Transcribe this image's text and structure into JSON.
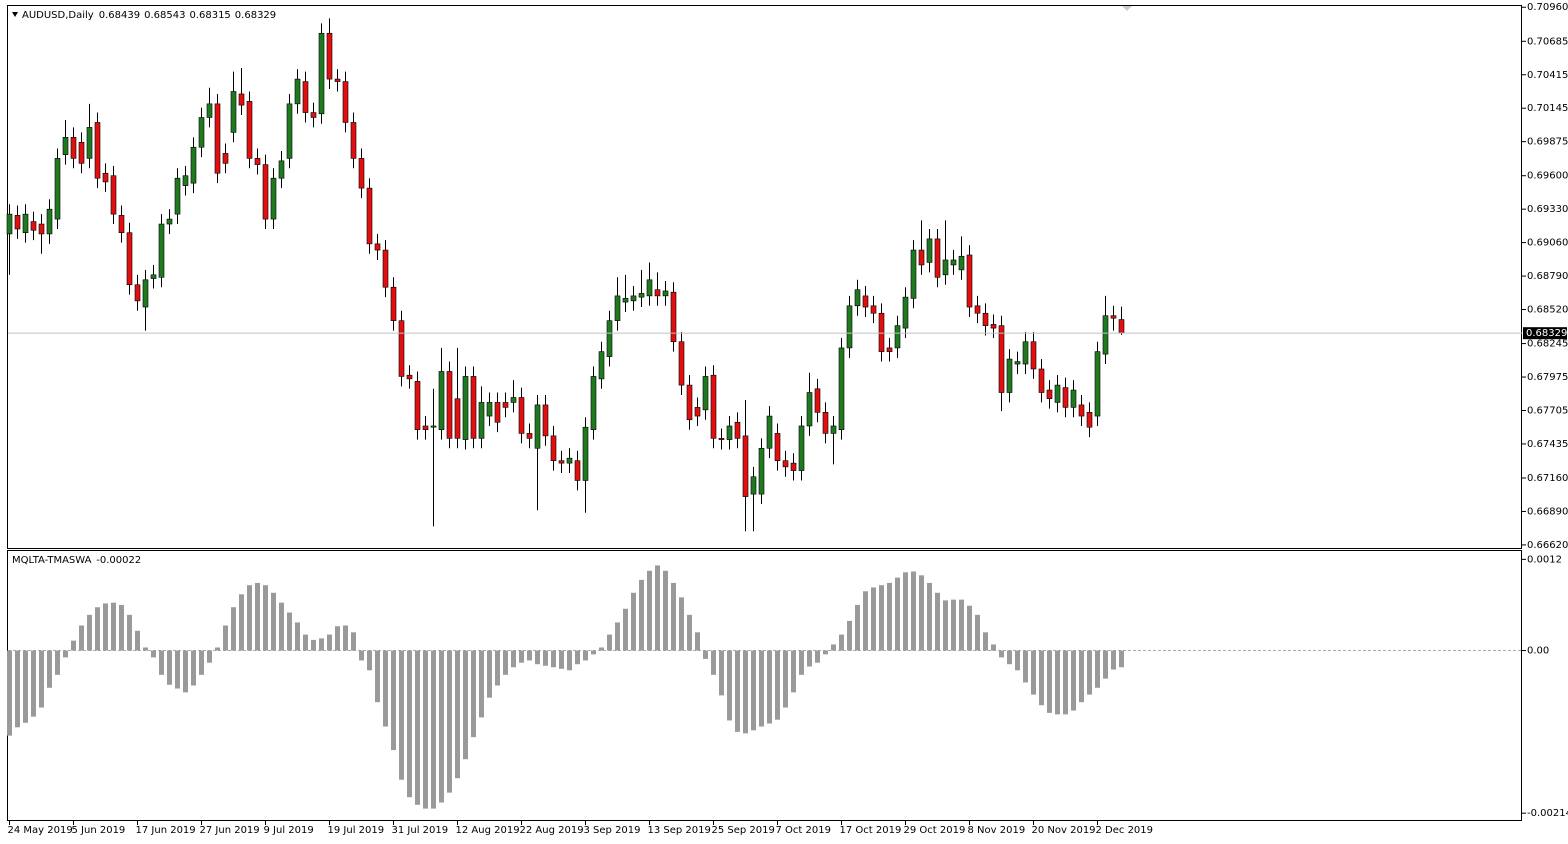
{
  "chart_data": [
    {
      "type": "candlestick",
      "title": "AUDUSD,Daily",
      "up_color": "#1f7a1f",
      "down_color": "#e01010",
      "categories": [
        "24 May 2019",
        null,
        null,
        null,
        null,
        null,
        null,
        null,
        "5 Jun 2019",
        null,
        null,
        null,
        null,
        null,
        null,
        null,
        "17 Jun 2019",
        null,
        null,
        null,
        null,
        null,
        null,
        null,
        "27 Jun 2019",
        null,
        null,
        null,
        null,
        null,
        null,
        null,
        "9 Jul 2019",
        null,
        null,
        null,
        null,
        null,
        null,
        null,
        "19 Jul 2019",
        null,
        null,
        null,
        null,
        null,
        null,
        null,
        "31 Jul 2019",
        null,
        null,
        null,
        null,
        null,
        null,
        null,
        "12 Aug 2019",
        null,
        null,
        null,
        null,
        null,
        null,
        null,
        "22 Aug 2019",
        null,
        null,
        null,
        null,
        null,
        null,
        null,
        "3 Sep 2019",
        null,
        null,
        null,
        null,
        null,
        null,
        null,
        "13 Sep 2019",
        null,
        null,
        null,
        null,
        null,
        null,
        null,
        "25 Sep 2019",
        null,
        null,
        null,
        null,
        null,
        null,
        null,
        "7 Oct 2019",
        null,
        null,
        null,
        null,
        null,
        null,
        null,
        "17 Oct 2019",
        null,
        null,
        null,
        null,
        null,
        null,
        null,
        "29 Oct 2019",
        null,
        null,
        null,
        null,
        null,
        null,
        null,
        "8 Nov 2019",
        null,
        null,
        null,
        null,
        null,
        null,
        null,
        "20 Nov 2019",
        null,
        null,
        null,
        null,
        null,
        null,
        null,
        "2 Dec 2019",
        null,
        null,
        null
      ],
      "open": [
        0.6913,
        0.6928,
        0.6914,
        0.6923,
        0.6921,
        0.6913,
        0.6925,
        0.6977,
        0.6991,
        0.6987,
        0.6974,
        0.7003,
        0.6962,
        0.696,
        0.6928,
        0.6914,
        0.6872,
        0.6854,
        0.6877,
        0.6878,
        0.6921,
        0.6929,
        0.6952,
        0.6954,
        0.6983,
        0.7007,
        0.7018,
        0.6978,
        0.6995,
        0.7026,
        0.702,
        0.6974,
        0.6969,
        0.6925,
        0.6958,
        0.6974,
        0.7018,
        0.7036,
        0.7011,
        0.701,
        0.7075,
        0.7038,
        0.7036,
        0.7003,
        0.6974,
        0.695,
        0.6905,
        0.69,
        0.687,
        0.6843,
        0.6799,
        0.6794,
        0.6758,
        0.6757,
        0.6755,
        0.6802,
        0.678,
        0.6747,
        0.6798,
        0.6748,
        0.6766,
        0.6777,
        0.6777,
        0.6777,
        0.6781,
        0.6752,
        0.674,
        0.6775,
        0.675,
        0.673,
        0.6728,
        0.673,
        0.6714,
        0.6755,
        0.6796,
        0.6814,
        0.6843,
        0.6858,
        0.6859,
        0.6862,
        0.6863,
        0.6868,
        0.6863,
        0.6866,
        0.6826,
        0.6791,
        0.6773,
        0.6771,
        0.6799,
        0.6748,
        0.6747,
        0.6761,
        0.675,
        0.6703,
        0.6703,
        0.674,
        0.6752,
        0.673,
        0.6728,
        0.6722,
        0.6758,
        0.6788,
        0.6769,
        0.6752,
        0.6755,
        0.6821,
        0.6855,
        0.6863,
        0.6855,
        0.6849,
        0.6821,
        0.6821,
        0.6837,
        0.6861,
        0.69,
        0.689,
        0.6909,
        0.688,
        0.6888,
        0.6884,
        0.6896,
        0.6855,
        0.6849,
        0.684,
        0.6839,
        0.6785,
        0.6808,
        0.6808,
        0.6826,
        0.6804,
        0.6787,
        0.6777,
        0.6789,
        0.6773,
        0.6775,
        0.6769,
        0.6766,
        0.6816,
        0.6847,
        0.68439
      ],
      "high": [
        0.6937,
        0.6936,
        0.6937,
        0.6931,
        0.6929,
        0.6941,
        0.6982,
        0.7005,
        0.6999,
        0.6995,
        0.7018,
        0.7011,
        0.697,
        0.6968,
        0.6936,
        0.6922,
        0.688,
        0.6884,
        0.6888,
        0.6929,
        0.6933,
        0.6966,
        0.6968,
        0.6991,
        0.7015,
        0.7031,
        0.7026,
        0.6986,
        0.7044,
        0.7047,
        0.7028,
        0.6982,
        0.6977,
        0.6966,
        0.698,
        0.7026,
        0.7046,
        0.7044,
        0.7019,
        0.7083,
        0.7087,
        0.7046,
        0.7044,
        0.7011,
        0.6982,
        0.6958,
        0.6913,
        0.6908,
        0.6878,
        0.6851,
        0.6807,
        0.6802,
        0.6766,
        0.6788,
        0.6821,
        0.681,
        0.6821,
        0.6806,
        0.6806,
        0.679,
        0.6785,
        0.6785,
        0.6785,
        0.6795,
        0.6789,
        0.676,
        0.6783,
        0.6783,
        0.6758,
        0.6738,
        0.674,
        0.6738,
        0.6765,
        0.6806,
        0.6826,
        0.6851,
        0.6878,
        0.688,
        0.6871,
        0.6884,
        0.689,
        0.6882,
        0.6875,
        0.6874,
        0.6834,
        0.6799,
        0.6781,
        0.6806,
        0.6807,
        0.6756,
        0.6766,
        0.6769,
        0.6779,
        0.6725,
        0.6748,
        0.6774,
        0.676,
        0.6738,
        0.6736,
        0.6766,
        0.6801,
        0.6796,
        0.6777,
        0.6766,
        0.6829,
        0.6863,
        0.6876,
        0.6871,
        0.6863,
        0.6857,
        0.6829,
        0.6847,
        0.687,
        0.6908,
        0.6924,
        0.6917,
        0.6917,
        0.6924,
        0.69,
        0.6911,
        0.6904,
        0.6863,
        0.6857,
        0.6848,
        0.6847,
        0.682,
        0.6818,
        0.6834,
        0.6834,
        0.6812,
        0.6795,
        0.6799,
        0.6797,
        0.6795,
        0.6783,
        0.6777,
        0.6826,
        0.6863,
        0.6855,
        0.68543
      ],
      "low": [
        0.688,
        0.6909,
        0.6906,
        0.6908,
        0.6897,
        0.6905,
        0.6917,
        0.6969,
        0.6966,
        0.6962,
        0.6966,
        0.695,
        0.6947,
        0.6921,
        0.6906,
        0.6864,
        0.6851,
        0.6835,
        0.6869,
        0.687,
        0.6913,
        0.6921,
        0.6944,
        0.6946,
        0.6975,
        0.6999,
        0.6954,
        0.6962,
        0.6987,
        0.7009,
        0.6966,
        0.6961,
        0.6917,
        0.6917,
        0.695,
        0.6966,
        0.701,
        0.7003,
        0.6999,
        0.7002,
        0.703,
        0.7028,
        0.6995,
        0.6966,
        0.6942,
        0.6897,
        0.6892,
        0.6862,
        0.6835,
        0.679,
        0.6788,
        0.6747,
        0.6747,
        0.6677,
        0.6747,
        0.674,
        0.674,
        0.6739,
        0.674,
        0.674,
        0.6758,
        0.6753,
        0.6765,
        0.6769,
        0.6744,
        0.674,
        0.669,
        0.6742,
        0.6722,
        0.672,
        0.672,
        0.6706,
        0.6688,
        0.6747,
        0.6788,
        0.6806,
        0.6835,
        0.685,
        0.6851,
        0.6854,
        0.6855,
        0.6855,
        0.6855,
        0.6818,
        0.6783,
        0.6755,
        0.6758,
        0.6763,
        0.674,
        0.6739,
        0.6739,
        0.674,
        0.6673,
        0.6673,
        0.6695,
        0.6732,
        0.6722,
        0.6717,
        0.6714,
        0.6714,
        0.675,
        0.6761,
        0.6744,
        0.6727,
        0.6747,
        0.6813,
        0.6847,
        0.6846,
        0.6841,
        0.681,
        0.681,
        0.6813,
        0.6829,
        0.6853,
        0.688,
        0.6882,
        0.687,
        0.6872,
        0.688,
        0.6876,
        0.6846,
        0.6841,
        0.6831,
        0.6829,
        0.677,
        0.6777,
        0.68,
        0.68,
        0.6796,
        0.6777,
        0.6772,
        0.6769,
        0.6765,
        0.6765,
        0.6758,
        0.6749,
        0.6758,
        0.6808,
        0.6835,
        0.68315
      ],
      "close": [
        0.6929,
        0.6917,
        0.6929,
        0.6916,
        0.6913,
        0.6933,
        0.6974,
        0.6991,
        0.6974,
        0.697,
        0.6999,
        0.6958,
        0.6955,
        0.6929,
        0.6914,
        0.6872,
        0.6859,
        0.6876,
        0.688,
        0.6921,
        0.6925,
        0.6958,
        0.696,
        0.6983,
        0.7007,
        0.7018,
        0.6962,
        0.697,
        0.7028,
        0.7017,
        0.6974,
        0.6969,
        0.6925,
        0.6958,
        0.6972,
        0.7018,
        0.7038,
        0.7011,
        0.7007,
        0.7075,
        0.7038,
        0.7036,
        0.7003,
        0.6974,
        0.695,
        0.6905,
        0.69,
        0.687,
        0.6843,
        0.6798,
        0.6796,
        0.6755,
        0.6755,
        0.6758,
        0.6802,
        0.6748,
        0.6748,
        0.6798,
        0.6748,
        0.6777,
        0.6777,
        0.6761,
        0.6773,
        0.6781,
        0.6752,
        0.6748,
        0.6775,
        0.675,
        0.673,
        0.6728,
        0.6732,
        0.6714,
        0.6757,
        0.6798,
        0.6818,
        0.6843,
        0.6863,
        0.6861,
        0.6863,
        0.6865,
        0.6876,
        0.6863,
        0.6867,
        0.6826,
        0.6791,
        0.6763,
        0.6766,
        0.6798,
        0.6748,
        0.6747,
        0.6758,
        0.6748,
        0.6701,
        0.6717,
        0.674,
        0.6766,
        0.673,
        0.6725,
        0.6722,
        0.6758,
        0.6785,
        0.6769,
        0.6752,
        0.6758,
        0.6821,
        0.6855,
        0.6868,
        0.6854,
        0.6849,
        0.6818,
        0.6818,
        0.6839,
        0.6862,
        0.69,
        0.6888,
        0.6909,
        0.6878,
        0.6892,
        0.6892,
        0.6895,
        0.6854,
        0.6849,
        0.6839,
        0.6837,
        0.6785,
        0.6812,
        0.681,
        0.6826,
        0.6804,
        0.6785,
        0.678,
        0.6791,
        0.6773,
        0.6787,
        0.6766,
        0.6757,
        0.6818,
        0.6847,
        0.6845,
        0.68329
      ],
      "ylim": [
        0.66595,
        0.7097
      ],
      "yticks": [
        {
          "value": 0.7096,
          "label": "0.70960"
        },
        {
          "value": 0.70685,
          "label": "0.70685"
        },
        {
          "value": 0.70415,
          "label": "0.70415"
        },
        {
          "value": 0.70145,
          "label": "0.70145"
        },
        {
          "value": 0.69875,
          "label": "0.69875"
        },
        {
          "value": 0.696,
          "label": "0.69600"
        },
        {
          "value": 0.6933,
          "label": "0.69330"
        },
        {
          "value": 0.6906,
          "label": "0.69060"
        },
        {
          "value": 0.6879,
          "label": "0.68790"
        },
        {
          "value": 0.6852,
          "label": "0.68520"
        },
        {
          "value": 0.68245,
          "label": "0.68245"
        },
        {
          "value": 0.67975,
          "label": "0.67975"
        },
        {
          "value": 0.67705,
          "label": "0.67705"
        },
        {
          "value": 0.67435,
          "label": "0.67435"
        },
        {
          "value": 0.6716,
          "label": "0.67160"
        },
        {
          "value": 0.6689,
          "label": "0.66890"
        },
        {
          "value": 0.6662,
          "label": "0.66620"
        }
      ]
    },
    {
      "type": "histogram_bars",
      "name": "MQLTA-TMASWA",
      "color": "#9a9a9a",
      "values": [
        -0.00112,
        -0.00101,
        -0.00095,
        -0.00087,
        -0.00075,
        -0.00049,
        -0.00032,
        -9e-05,
        0.00013,
        0.00033,
        0.00047,
        0.00057,
        0.00062,
        0.00063,
        0.0006,
        0.00047,
        0.00026,
        4e-05,
        -9e-05,
        -0.00032,
        -0.00045,
        -0.0005,
        -0.00055,
        -0.00046,
        -0.00032,
        -0.00016,
        4e-05,
        0.00033,
        0.00057,
        0.00074,
        0.00086,
        0.00089,
        0.00086,
        0.00076,
        0.00063,
        0.0005,
        0.00037,
        0.00021,
        0.00014,
        0.00016,
        0.00021,
        0.00032,
        0.00033,
        0.00024,
        -0.00013,
        -0.00026,
        -0.00068,
        -0.001,
        -0.00131,
        -0.0017,
        -0.00193,
        -0.00203,
        -0.00208,
        -0.00208,
        -0.002,
        -0.00187,
        -0.00168,
        -0.00143,
        -0.00114,
        -0.00088,
        -0.00062,
        -0.00046,
        -0.00032,
        -0.00022,
        -0.00016,
        -0.00013,
        -0.00018,
        -0.0002,
        -0.00022,
        -0.00024,
        -0.00026,
        -0.00018,
        -0.00013,
        -5e-05,
        4e-05,
        0.00021,
        0.00037,
        0.00055,
        0.00076,
        0.00093,
        0.00105,
        0.00112,
        0.00105,
        0.00089,
        0.0007,
        0.00047,
        0.00024,
        -0.00011,
        -0.00032,
        -0.00059,
        -0.00092,
        -0.00107,
        -0.00109,
        -0.00105,
        -0.001,
        -0.00096,
        -0.00091,
        -0.00075,
        -0.00055,
        -0.00032,
        -0.00021,
        -0.00016,
        -5e-05,
        8e-05,
        0.00021,
        0.00039,
        0.0006,
        0.00078,
        0.00083,
        0.00086,
        0.00089,
        0.00096,
        0.00103,
        0.00104,
        0.00099,
        0.00089,
        0.00076,
        0.00066,
        0.00067,
        0.00067,
        0.00059,
        0.00047,
        0.00024,
        8e-05,
        -9e-05,
        -0.00018,
        -0.00026,
        -0.00042,
        -0.00058,
        -0.00072,
        -0.00082,
        -0.00084,
        -0.00084,
        -0.00079,
        -0.00068,
        -0.00058,
        -0.00049,
        -0.00037,
        -0.00025,
        -0.00022
      ],
      "ylim": [
        -0.00223,
        0.00131
      ],
      "yticks": [
        0.0012,
        {
          "value": 0,
          "label": "0.00"
        },
        -0.00214
      ]
    }
  ]
}
